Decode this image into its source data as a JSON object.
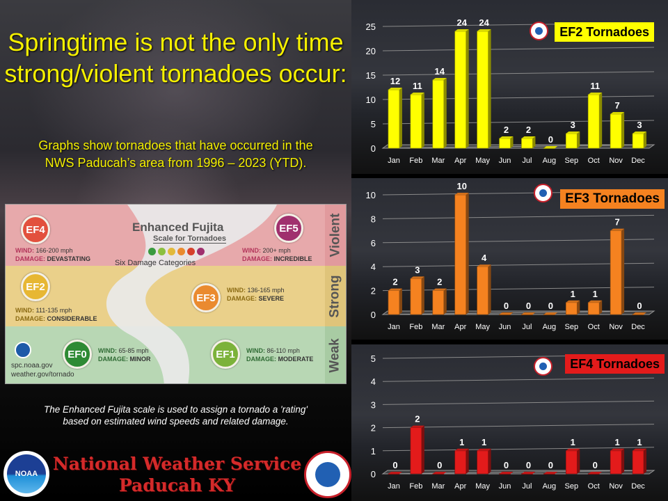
{
  "headline": {
    "line1": "Springtime is not the only time",
    "line2": "strong/violent tornadoes occur:"
  },
  "subtext": {
    "line1": "Graphs show tornadoes that have occurred in the",
    "line2": "NWS Paducah’s area from 1996 – 2023 (YTD)."
  },
  "ef_scale": {
    "title": "Enhanced Fujita",
    "subtitle": "Scale for Tornadoes",
    "categories_note": "Six Damage Categories",
    "dot_colors": [
      "#3a9a3f",
      "#8cbf3f",
      "#e2b93b",
      "#ea8a2f",
      "#d6412c",
      "#a0306e"
    ],
    "band_labels": {
      "violent": "Violent",
      "strong": "Strong",
      "weak": "Weak"
    },
    "wind_label": "WIND:",
    "damage_label": "DAMAGE:",
    "ratings": [
      {
        "rating": "EF4",
        "wind": "166-200 mph",
        "damage": "DEVASTATING",
        "color": "#e2503d"
      },
      {
        "rating": "EF5",
        "wind": "200+ mph",
        "damage": "INCREDIBLE",
        "color": "#a0306e"
      },
      {
        "rating": "EF2",
        "wind": "111-135 mph",
        "damage": "CONSIDERABLE",
        "color": "#e7b733"
      },
      {
        "rating": "EF3",
        "wind": "136-165 mph",
        "damage": "SEVERE",
        "color": "#ea8a2f"
      },
      {
        "rating": "EF0",
        "wind": "65-85 mph",
        "damage": "MINOR",
        "color": "#2e8a34"
      },
      {
        "rating": "EF1",
        "wind": "86-110 mph",
        "damage": "MODERATE",
        "color": "#7cb23a"
      }
    ],
    "site1": "spc.noaa.gov",
    "site2": "weather.gov/tornado"
  },
  "caption": {
    "line1": "The Enhanced Fujita scale is used to assign a tornado a 'rating'",
    "line2": "based on estimated wind speeds and related damage."
  },
  "org": {
    "name": "National Weather Service",
    "office": "Paducah KY",
    "noaa_logo_text": "NOAA"
  },
  "chart_data": [
    {
      "type": "bar",
      "title": "EF2 Tornadoes",
      "categories": [
        "Jan",
        "Feb",
        "Mar",
        "Apr",
        "May",
        "Jun",
        "Jul",
        "Aug",
        "Sep",
        "Oct",
        "Nov",
        "Dec"
      ],
      "values": [
        12,
        11,
        14,
        24,
        24,
        2,
        2,
        0,
        3,
        11,
        7,
        3
      ],
      "yticks": [
        0,
        5,
        10,
        15,
        20,
        25
      ],
      "ylim": [
        0,
        25
      ],
      "color": "#ffff00",
      "grid": true,
      "data_labels": true
    },
    {
      "type": "bar",
      "title": "EF3 Tornadoes",
      "categories": [
        "Jan",
        "Feb",
        "Mar",
        "Apr",
        "May",
        "Jun",
        "Jul",
        "Aug",
        "Sep",
        "Oct",
        "Nov",
        "Dec"
      ],
      "values": [
        2,
        3,
        2,
        10,
        4,
        0,
        0,
        0,
        1,
        1,
        7,
        0
      ],
      "yticks": [
        0,
        2,
        4,
        6,
        8,
        10
      ],
      "ylim": [
        0,
        10
      ],
      "color": "#f58220",
      "grid": true,
      "data_labels": true
    },
    {
      "type": "bar",
      "title": "EF4 Tornadoes",
      "categories": [
        "Jan",
        "Feb",
        "Mar",
        "Apr",
        "May",
        "Jun",
        "Jul",
        "Aug",
        "Sep",
        "Oct",
        "Nov",
        "Dec"
      ],
      "values": [
        0,
        2,
        0,
        1,
        1,
        0,
        0,
        0,
        1,
        0,
        1,
        1
      ],
      "yticks": [
        0,
        1,
        2,
        3,
        4,
        5
      ],
      "ylim": [
        0,
        5
      ],
      "color": "#e31b1b",
      "grid": true,
      "data_labels": true
    }
  ]
}
